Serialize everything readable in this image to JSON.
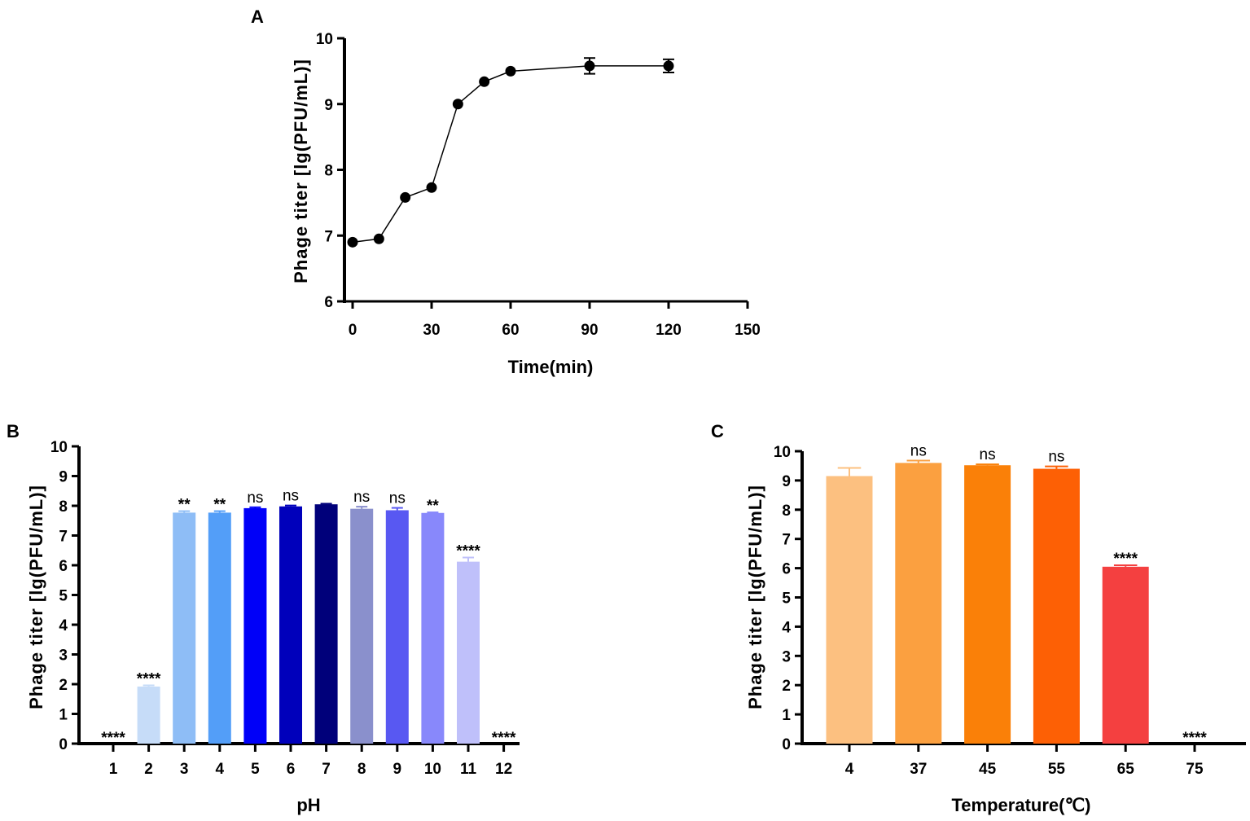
{
  "chart_data": [
    {
      "panel": "A",
      "type": "line",
      "xlabel": "Time(min)",
      "ylabel": "Phage titer [lg(PFU/mL)]",
      "xlim": [
        0,
        150
      ],
      "ylim": [
        6,
        10
      ],
      "xticks": [
        0,
        30,
        60,
        90,
        120,
        150
      ],
      "yticks": [
        6,
        7,
        8,
        9,
        10
      ],
      "x": [
        0,
        10,
        20,
        30,
        40,
        50,
        60,
        90,
        120
      ],
      "y": [
        6.9,
        6.95,
        7.58,
        7.73,
        9.0,
        9.34,
        9.5,
        9.58,
        9.58
      ],
      "err": [
        0.03,
        0.03,
        0.03,
        0.03,
        0.03,
        0.03,
        0.03,
        0.12,
        0.1
      ],
      "color": "#000000"
    },
    {
      "panel": "B",
      "type": "bar",
      "xlabel": "pH",
      "ylabel": "Phage titer [lg(PFU/mL)]",
      "ylim": [
        0,
        10
      ],
      "yticks": [
        0,
        1,
        2,
        3,
        4,
        5,
        6,
        7,
        8,
        9,
        10
      ],
      "categories": [
        "1",
        "2",
        "3",
        "4",
        "5",
        "6",
        "7",
        "8",
        "9",
        "10",
        "11",
        "12"
      ],
      "values": [
        0,
        1.92,
        7.77,
        7.77,
        7.92,
        7.98,
        8.05,
        7.9,
        7.85,
        7.76,
        6.12,
        0
      ],
      "err": [
        0,
        0.04,
        0.05,
        0.05,
        0.03,
        0.03,
        0.02,
        0.07,
        0.08,
        0.02,
        0.14,
        0
      ],
      "significance": [
        "****",
        "****",
        "**",
        "**",
        "ns",
        "ns",
        "",
        "ns",
        "ns",
        "**",
        "****",
        "****"
      ],
      "colors": [
        "#c6dcf8",
        "#c6dcf8",
        "#8ebdf6",
        "#539ef8",
        "#0000f8",
        "#0000bb",
        "#00007a",
        "#8a90cc",
        "#5858f2",
        "#8888fb",
        "#bfc0fa",
        "#bfc0fa"
      ]
    },
    {
      "panel": "C",
      "type": "bar",
      "xlabel": "Temperature(℃)",
      "ylabel": "Phage titer [lg(PFU/mL)]",
      "ylim": [
        0,
        10
      ],
      "yticks": [
        0,
        1,
        2,
        3,
        4,
        5,
        6,
        7,
        8,
        9,
        10
      ],
      "categories": [
        "4",
        "37",
        "45",
        "55",
        "65",
        "75"
      ],
      "values": [
        9.15,
        9.6,
        9.52,
        9.4,
        6.05,
        0
      ],
      "err": [
        0.28,
        0.08,
        0.03,
        0.08,
        0.05,
        0
      ],
      "significance": [
        "",
        "ns",
        "ns",
        "ns",
        "****",
        "****"
      ],
      "colors": [
        "#fcc080",
        "#fba040",
        "#fa8008",
        "#fd6005",
        "#f44040",
        "#f44040"
      ]
    }
  ]
}
